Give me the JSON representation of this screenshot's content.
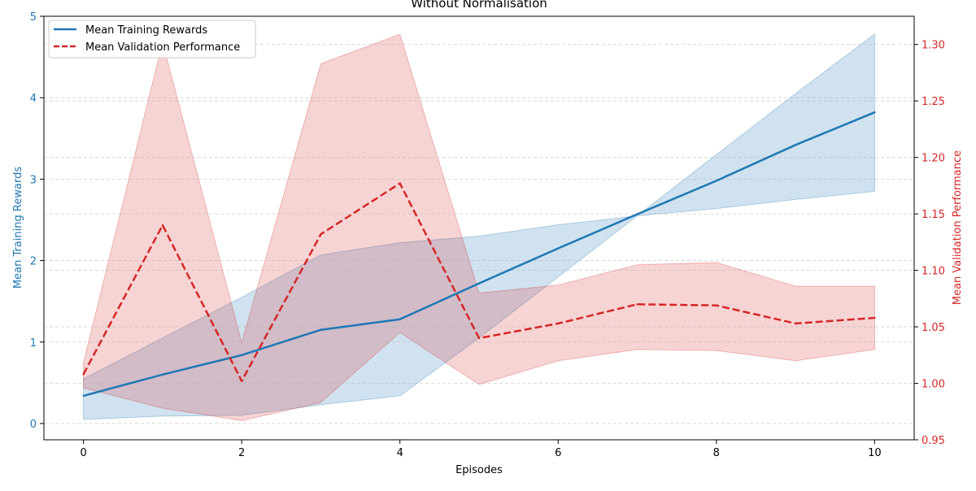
{
  "chart_data": {
    "type": "line",
    "title": "Without Normalisation",
    "xlabel": "Episodes",
    "y_left_label": "Mean Training Rewards",
    "y_right_label": "Mean Validation Performance",
    "xlim": [
      -0.5,
      10.5
    ],
    "y_left_lim": [
      -0.2,
      5.0
    ],
    "y_right_lim": [
      0.95,
      1.325
    ],
    "x_ticks": [
      0,
      2,
      4,
      6,
      8,
      10
    ],
    "y_left_ticks": [
      0,
      1,
      2,
      3,
      4,
      5
    ],
    "y_right_ticks": [
      0.95,
      1.0,
      1.05,
      1.1,
      1.15,
      1.2,
      1.25,
      1.3
    ],
    "y_right_tick_labels": [
      "0.95",
      "1.00",
      "1.05",
      "1.10",
      "1.15",
      "1.20",
      "1.25",
      "1.30"
    ],
    "grid": "horizontal dashed",
    "legend_position": "top-left",
    "x": [
      0,
      1,
      2,
      3,
      4,
      5,
      6,
      7,
      8,
      9,
      10
    ],
    "series": [
      {
        "name": "Mean Training Rewards",
        "axis": "left",
        "style": "solid",
        "color": "#1f77b4",
        "values": [
          0.34,
          0.6,
          0.84,
          1.15,
          1.28,
          1.72,
          2.15,
          2.57,
          2.98,
          3.42,
          3.82
        ],
        "band_low": [
          0.05,
          0.09,
          0.1,
          0.23,
          0.34,
          1.05,
          1.8,
          2.55,
          2.64,
          2.75,
          2.85
        ],
        "band_high": [
          0.55,
          1.05,
          1.55,
          2.07,
          2.22,
          2.3,
          2.44,
          2.55,
          3.3,
          4.05,
          4.78
        ]
      },
      {
        "name": "Mean Validation Performance",
        "axis": "right",
        "style": "dashed",
        "color": "#d62728",
        "values": [
          1.008,
          1.14,
          1.002,
          1.132,
          1.177,
          1.04,
          1.053,
          1.07,
          1.069,
          1.053,
          1.058
        ],
        "band_low": [
          0.996,
          0.978,
          0.967,
          0.983,
          1.045,
          0.999,
          1.02,
          1.03,
          1.029,
          1.02,
          1.03
        ],
        "band_high": [
          1.018,
          1.302,
          1.036,
          1.283,
          1.309,
          1.08,
          1.087,
          1.105,
          1.107,
          1.086,
          1.086
        ]
      }
    ]
  }
}
